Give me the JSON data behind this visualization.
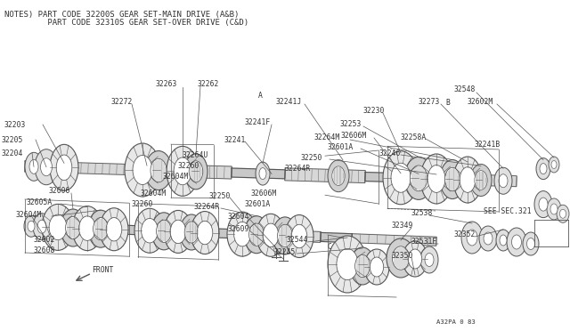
{
  "bg_color": "#ffffff",
  "line_color": "#555555",
  "text_color": "#333333",
  "title_line1": "NOTES) PART CODE 32200S GEAR SET-MAIN DRIVE (A&B)",
  "title_line2": "         PART CODE 32310S GEAR SET-OVER DRIVE (C&D)",
  "diagram_id": "A32PA 0 83",
  "font_size_title": 6.5,
  "font_size_label": 5.8,
  "font_size_small": 5.2
}
